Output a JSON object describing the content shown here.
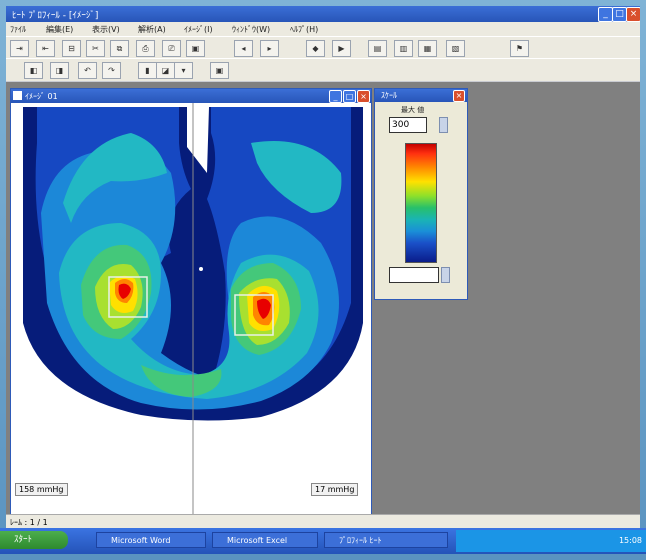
{
  "window": {
    "title": "ﾋｰﾄ ﾌﾟﾛﾌｨｰﾙ - [ｲﾒｰｼﾞ]"
  },
  "menu": [
    "ﾌｧｲﾙ",
    "編集(E)",
    "表示(V)",
    "解析(A)",
    "ｲﾒｰｼﾞ(I)",
    "ｳｨﾝﾄﾞｳ(W)",
    "ﾍﾙﾌﾟ(H)"
  ],
  "toolbar1": [
    "⇥",
    "⇤",
    "⊟",
    "✂",
    "⧉",
    "⎙",
    "⎚",
    "▣",
    "◂",
    "▸",
    "◆",
    "▶",
    "▤",
    "▥",
    "▦",
    "▧",
    "⚑"
  ],
  "toolbar2": [
    "◧",
    "◨",
    "↶",
    "↷",
    "▮",
    "◪",
    "▾",
    "▣"
  ],
  "image_window": {
    "title": "ｲﾒｰｼﾞ 01"
  },
  "chips": {
    "left": "158 mmHg",
    "right": "17 mmHg"
  },
  "heatmap_colors": [
    "#ffffff",
    "#061c7a",
    "#1648c2",
    "#1c88d8",
    "#22b8c4",
    "#44c87a",
    "#a8e030",
    "#ffe000",
    "#ff8400",
    "#e80000"
  ],
  "scale": {
    "title": "ｽｹｰﾙ",
    "label": "最大 値",
    "max": "300",
    "min": ""
  },
  "status": "ﾚｰﾑ : 1 / 1",
  "taskbar": {
    "start": "ｽﾀｰﾄ",
    "tasks": [
      "Microsoft Word",
      "Microsoft Excel",
      "ﾌﾟﾛﾌｨｰﾙ ﾋｰﾄ"
    ],
    "clock": "15:08"
  }
}
